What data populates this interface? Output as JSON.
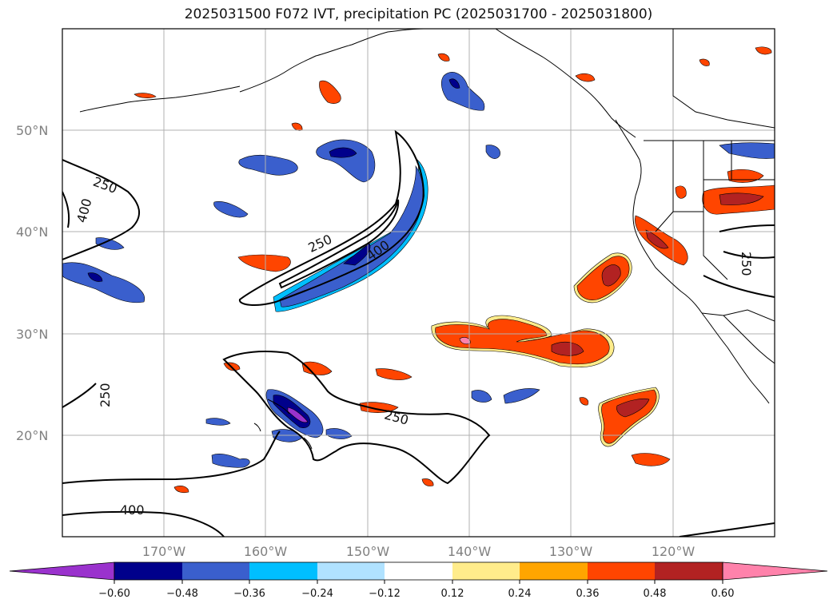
{
  "title": "2025031500 F072 IVT, precipitation PC (2025031700 - 2025031800)",
  "lat_labels": [
    {
      "text": "50°N",
      "lat": 50
    },
    {
      "text": "40°N",
      "lat": 40
    },
    {
      "text": "30°N",
      "lat": 30
    },
    {
      "text": "20°N",
      "lat": 20
    }
  ],
  "lon_labels": [
    {
      "text": "170°W",
      "lon": -170
    },
    {
      "text": "160°W",
      "lon": -160
    },
    {
      "text": "150°W",
      "lon": -150
    },
    {
      "text": "140°W",
      "lon": -140
    },
    {
      "text": "130°W",
      "lon": -130
    },
    {
      "text": "120°W",
      "lon": -120
    }
  ],
  "contour_labels": [
    "250",
    "400",
    "250",
    "400",
    "250",
    "250",
    "400",
    "250"
  ],
  "colorbar": {
    "ticks": [
      "−0.60",
      "−0.48",
      "−0.36",
      "−0.24",
      "−0.12",
      "0.12",
      "0.24",
      "0.36",
      "0.48",
      "0.60"
    ],
    "colors": [
      "#9a32cd",
      "#00008b",
      "#3a5fcd",
      "#00bfff",
      "#b0e2ff",
      "#ffffff",
      "#ffec8b",
      "#ffa500",
      "#ff4500",
      "#b22222",
      "#ff82ab"
    ]
  }
}
